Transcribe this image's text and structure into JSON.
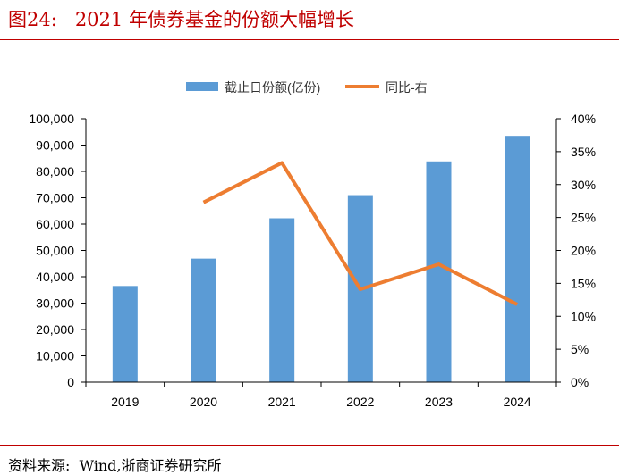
{
  "figure": {
    "title": "图24:   2021 年债券基金的份额大幅增长",
    "source": "资料来源:  Wind,浙商证券研究所"
  },
  "colors": {
    "bar": "#5b9bd5",
    "line": "#ed7d31",
    "accent": "#c00000"
  },
  "chart_data": {
    "type": "bar",
    "categories": [
      "2019",
      "2020",
      "2021",
      "2022",
      "2023",
      "2024"
    ],
    "series": [
      {
        "name": "截止日份额(亿份)",
        "type": "bar",
        "axis": "left",
        "values": [
          36500,
          46900,
          62200,
          71000,
          83800,
          93500
        ]
      },
      {
        "name": "同比-右",
        "type": "line",
        "axis": "right",
        "values": [
          null,
          0.273,
          0.333,
          0.141,
          0.179,
          0.118
        ]
      }
    ],
    "y_left": {
      "ylim": [
        0,
        100000
      ],
      "ticks": [
        "0",
        "10,000",
        "20,000",
        "30,000",
        "40,000",
        "50,000",
        "60,000",
        "70,000",
        "80,000",
        "90,000",
        "100,000"
      ]
    },
    "y_right": {
      "ylim": [
        0,
        0.4
      ],
      "ticks": [
        "0%",
        "5%",
        "10%",
        "15%",
        "20%",
        "25%",
        "30%",
        "35%",
        "40%"
      ]
    },
    "legend": "top-center",
    "grid": false
  }
}
